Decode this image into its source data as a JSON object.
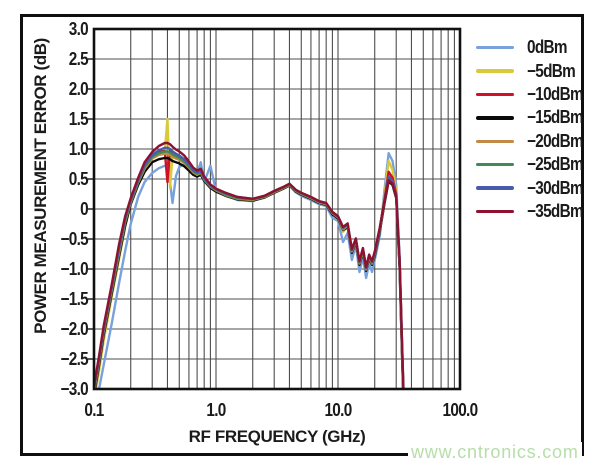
{
  "figure": {
    "watermark": "www.cntronics.com",
    "watermark_color": "#b7dda9"
  },
  "colors": {
    "frame": "#0f0f0f",
    "grid": "#4e4e4e",
    "plot_border": "#111111",
    "text": "#1b1b1b"
  },
  "chart_data": {
    "type": "line",
    "title": "",
    "xlabel": "RF FREQUENCY (GHz)",
    "ylabel": "POWER MEASUREMENT ERROR (dB)",
    "x_scale": "log",
    "xlim": [
      0.1,
      100
    ],
    "ylim": [
      -3.0,
      3.0
    ],
    "y_tick_step": 0.5,
    "grid": true,
    "legend_position": "right",
    "x_ticks": [
      0.1,
      1,
      10,
      100
    ],
    "x_tick_labels": [
      "0.1",
      "1.0",
      "10.0",
      "100.0"
    ],
    "y_tick_labels": [
      "3.0",
      "2.5",
      "2.0",
      "1.5",
      "1.0",
      "0.5",
      "0",
      "−0.5",
      "−1.0",
      "−1.5",
      "−2.0",
      "−2.5",
      "−3.0"
    ],
    "x": [
      0.1,
      0.11,
      0.12,
      0.14,
      0.16,
      0.18,
      0.2,
      0.23,
      0.26,
      0.3,
      0.34,
      0.38,
      0.4,
      0.42,
      0.44,
      0.47,
      0.5,
      0.55,
      0.6,
      0.65,
      0.7,
      0.75,
      0.8,
      0.9,
      1.0,
      1.2,
      1.5,
      2.0,
      2.5,
      3.0,
      3.5,
      4.0,
      4.5,
      5.0,
      6.0,
      7.0,
      8.0,
      9.0,
      10,
      11,
      12,
      13,
      14,
      15,
      16,
      17,
      18,
      19,
      20,
      22,
      24,
      26,
      28,
      30,
      32,
      33.5,
      35
    ],
    "series": [
      {
        "name": "0dBm",
        "color": "#79A1DB",
        "values": [
          -3.4,
          -3.0,
          -2.6,
          -1.9,
          -1.25,
          -0.7,
          -0.25,
          0.2,
          0.45,
          0.6,
          0.68,
          0.72,
          0.7,
          0.45,
          0.1,
          0.55,
          0.7,
          0.75,
          0.7,
          0.63,
          0.6,
          0.78,
          0.45,
          0.72,
          0.3,
          0.22,
          0.15,
          0.13,
          0.2,
          0.28,
          0.34,
          0.4,
          0.28,
          0.22,
          0.15,
          0.08,
          0.05,
          -0.15,
          -0.2,
          -0.55,
          -0.4,
          -0.85,
          -0.6,
          -1.05,
          -0.8,
          -1.15,
          -0.9,
          -1.05,
          -0.85,
          -0.45,
          0.3,
          0.93,
          0.8,
          0.4,
          -0.8,
          -2.2,
          -3.5
        ]
      },
      {
        "name": "−5dBm",
        "color": "#D9C93F",
        "values": [
          -3.2,
          -2.7,
          -2.2,
          -1.45,
          -0.85,
          -0.3,
          0.1,
          0.42,
          0.68,
          0.85,
          0.92,
          0.95,
          1.5,
          0.35,
          0.9,
          0.87,
          0.84,
          0.78,
          0.7,
          0.63,
          0.58,
          0.62,
          0.5,
          0.38,
          0.32,
          0.24,
          0.18,
          0.15,
          0.21,
          0.29,
          0.35,
          0.41,
          0.3,
          0.25,
          0.18,
          0.1,
          0.08,
          -0.08,
          -0.15,
          -0.38,
          -0.3,
          -0.72,
          -0.55,
          -0.92,
          -0.7,
          -1.02,
          -0.8,
          -0.92,
          -0.76,
          -0.36,
          0.2,
          0.8,
          0.65,
          0.3,
          -0.9,
          -2.3,
          -3.6
        ]
      },
      {
        "name": "−10dBm",
        "color": "#CE1126",
        "values": [
          -3.1,
          -2.6,
          -2.1,
          -1.38,
          -0.78,
          -0.25,
          0.13,
          0.45,
          0.7,
          0.88,
          0.95,
          0.97,
          0.45,
          0.97,
          0.93,
          0.9,
          0.87,
          0.81,
          0.73,
          0.65,
          0.6,
          0.63,
          0.52,
          0.4,
          0.33,
          0.25,
          0.19,
          0.16,
          0.21,
          0.29,
          0.35,
          0.41,
          0.31,
          0.26,
          0.19,
          0.12,
          0.09,
          -0.06,
          -0.13,
          -0.33,
          -0.27,
          -0.7,
          -0.52,
          -0.9,
          -0.68,
          -1.0,
          -0.78,
          -0.9,
          -0.74,
          -0.34,
          0.15,
          0.62,
          0.52,
          0.25,
          -0.95,
          -2.4,
          -3.7
        ]
      },
      {
        "name": "−15dBm",
        "color": "#0a0a0a",
        "values": [
          -3.1,
          -2.6,
          -2.1,
          -1.4,
          -0.8,
          -0.28,
          0.08,
          0.4,
          0.62,
          0.78,
          0.83,
          0.85,
          0.85,
          0.83,
          0.8,
          0.78,
          0.76,
          0.71,
          0.64,
          0.57,
          0.54,
          0.57,
          0.47,
          0.35,
          0.29,
          0.22,
          0.16,
          0.14,
          0.19,
          0.27,
          0.33,
          0.39,
          0.29,
          0.24,
          0.17,
          0.1,
          0.07,
          -0.09,
          -0.16,
          -0.35,
          -0.3,
          -0.73,
          -0.55,
          -0.93,
          -0.72,
          -1.03,
          -0.82,
          -0.93,
          -0.78,
          -0.38,
          0.08,
          0.46,
          0.4,
          0.18,
          -1.0,
          -2.45,
          -3.7
        ]
      },
      {
        "name": "−20dBm",
        "color": "#C28A47",
        "values": [
          -3.05,
          -2.55,
          -2.05,
          -1.35,
          -0.75,
          -0.22,
          0.11,
          0.44,
          0.67,
          0.84,
          0.9,
          0.92,
          0.92,
          0.9,
          0.87,
          0.84,
          0.82,
          0.77,
          0.69,
          0.61,
          0.57,
          0.6,
          0.49,
          0.37,
          0.31,
          0.23,
          0.17,
          0.15,
          0.2,
          0.28,
          0.34,
          0.4,
          0.3,
          0.25,
          0.18,
          0.11,
          0.08,
          -0.07,
          -0.14,
          -0.34,
          -0.28,
          -0.71,
          -0.53,
          -0.91,
          -0.7,
          -1.01,
          -0.8,
          -0.91,
          -0.75,
          -0.35,
          0.12,
          0.5,
          0.44,
          0.2,
          -0.9,
          -2.35,
          -3.65
        ]
      },
      {
        "name": "−25dBm",
        "color": "#3F8A56",
        "values": [
          -3.0,
          -2.52,
          -2.02,
          -1.32,
          -0.7,
          -0.19,
          0.13,
          0.46,
          0.7,
          0.87,
          0.93,
          0.96,
          0.96,
          0.94,
          0.91,
          0.88,
          0.85,
          0.79,
          0.71,
          0.63,
          0.59,
          0.61,
          0.5,
          0.38,
          0.32,
          0.24,
          0.18,
          0.16,
          0.21,
          0.29,
          0.35,
          0.41,
          0.31,
          0.26,
          0.19,
          0.12,
          0.09,
          -0.06,
          -0.13,
          -0.32,
          -0.26,
          -0.69,
          -0.51,
          -0.89,
          -0.67,
          -0.99,
          -0.78,
          -0.89,
          -0.73,
          -0.33,
          0.13,
          0.52,
          0.46,
          0.21,
          -0.88,
          -2.3,
          -3.6
        ]
      },
      {
        "name": "−30dBm",
        "color": "#4A5BAB",
        "values": [
          -3.0,
          -2.5,
          -2.0,
          -1.3,
          -0.66,
          -0.16,
          0.15,
          0.48,
          0.73,
          0.9,
          0.98,
          1.02,
          1.02,
          1.0,
          0.96,
          0.92,
          0.89,
          0.83,
          0.74,
          0.65,
          0.61,
          0.63,
          0.51,
          0.39,
          0.33,
          0.26,
          0.2,
          0.17,
          0.22,
          0.3,
          0.36,
          0.42,
          0.32,
          0.27,
          0.2,
          0.13,
          0.1,
          -0.05,
          -0.12,
          -0.31,
          -0.25,
          -0.68,
          -0.5,
          -0.88,
          -0.66,
          -0.98,
          -0.77,
          -0.88,
          -0.72,
          -0.32,
          0.14,
          0.54,
          0.47,
          0.22,
          -0.86,
          -2.28,
          -3.58
        ]
      },
      {
        "name": "−35dBm",
        "color": "#8E1230",
        "values": [
          -2.95,
          -2.45,
          -1.95,
          -1.25,
          -0.6,
          -0.12,
          0.18,
          0.52,
          0.78,
          0.95,
          1.05,
          1.1,
          1.1,
          1.08,
          1.04,
          0.99,
          0.96,
          0.89,
          0.79,
          0.69,
          0.64,
          0.67,
          0.54,
          0.41,
          0.34,
          0.27,
          0.2,
          0.17,
          0.22,
          0.3,
          0.36,
          0.42,
          0.32,
          0.27,
          0.2,
          0.13,
          0.1,
          -0.05,
          -0.12,
          -0.3,
          -0.24,
          -0.67,
          -0.49,
          -0.87,
          -0.65,
          -0.97,
          -0.76,
          -0.87,
          -0.71,
          -0.31,
          0.12,
          0.48,
          0.42,
          0.2,
          -0.85,
          -2.25,
          -3.55
        ]
      }
    ]
  }
}
